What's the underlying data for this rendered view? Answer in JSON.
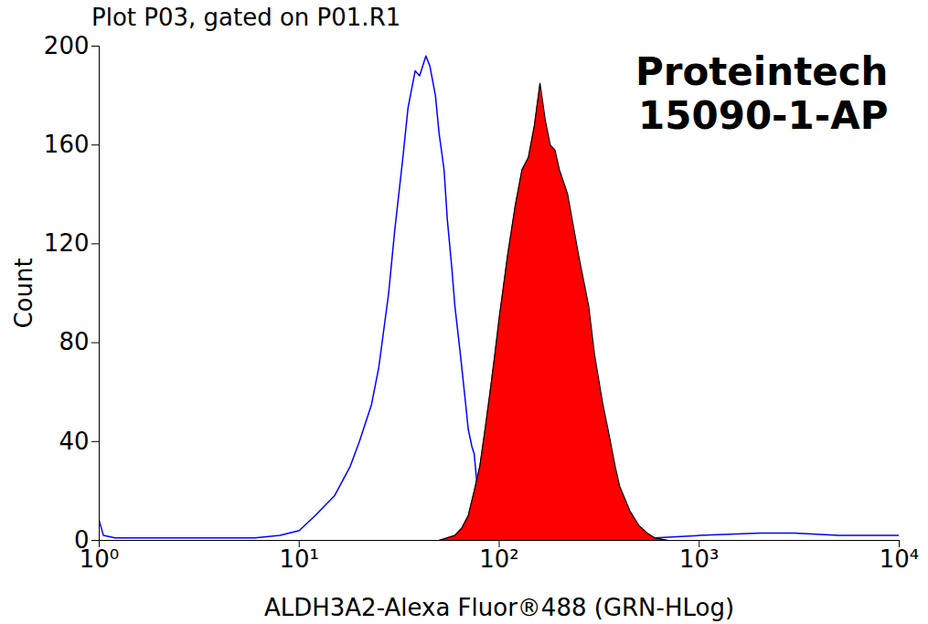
{
  "chart_data": {
    "type": "line",
    "title": "Plot P03, gated on P01.R1",
    "annotation": [
      "Proteintech",
      "15090-1-AP"
    ],
    "x_label": "ALDH3A2-Alexa Fluor®488 (GRN-HLog)",
    "y_label": "Count",
    "log": "x",
    "xlim": [
      1,
      10000
    ],
    "xticks": [
      {
        "value": 1,
        "label": "10⁰"
      },
      {
        "value": 10,
        "label": "10¹"
      },
      {
        "value": 100,
        "label": "10²"
      },
      {
        "value": 1000,
        "label": "10³"
      },
      {
        "value": 10000,
        "label": "10⁴"
      }
    ],
    "ylim": [
      0,
      200
    ],
    "yticks": [
      0,
      40,
      80,
      120,
      160,
      200
    ],
    "series": [
      {
        "type": "line",
        "color": "#0000ff",
        "x": [
          1,
          1.05,
          1.2,
          2,
          4,
          6,
          8,
          10,
          12,
          15,
          18,
          20,
          23,
          25,
          28,
          30,
          33,
          35,
          38,
          40,
          43,
          45,
          48,
          50,
          53,
          55,
          58,
          60,
          63,
          65,
          68,
          70,
          73,
          75,
          78,
          80,
          90,
          100,
          150,
          300,
          600,
          1000,
          2000,
          3000,
          5000,
          10000
        ],
        "values": [
          8,
          2,
          1,
          1,
          1,
          1,
          2,
          4,
          10,
          18,
          30,
          40,
          55,
          70,
          100,
          125,
          155,
          175,
          190,
          188,
          196,
          192,
          180,
          165,
          150,
          130,
          110,
          95,
          80,
          70,
          55,
          45,
          38,
          35,
          20,
          8,
          3,
          2,
          1,
          1,
          1,
          2,
          3,
          3,
          2,
          2
        ]
      },
      {
        "type": "area",
        "color": "#ff0000",
        "x": [
          50,
          60,
          65,
          70,
          75,
          80,
          85,
          90,
          95,
          100,
          110,
          120,
          130,
          140,
          150,
          160,
          170,
          180,
          190,
          200,
          220,
          250,
          280,
          300,
          330,
          350,
          380,
          400,
          450,
          500,
          550,
          600,
          700
        ],
        "values": [
          0,
          2,
          5,
          10,
          20,
          30,
          45,
          60,
          75,
          90,
          115,
          135,
          150,
          155,
          168,
          185,
          170,
          160,
          158,
          150,
          140,
          115,
          95,
          75,
          55,
          45,
          30,
          22,
          12,
          6,
          3,
          1,
          0
        ]
      }
    ]
  }
}
